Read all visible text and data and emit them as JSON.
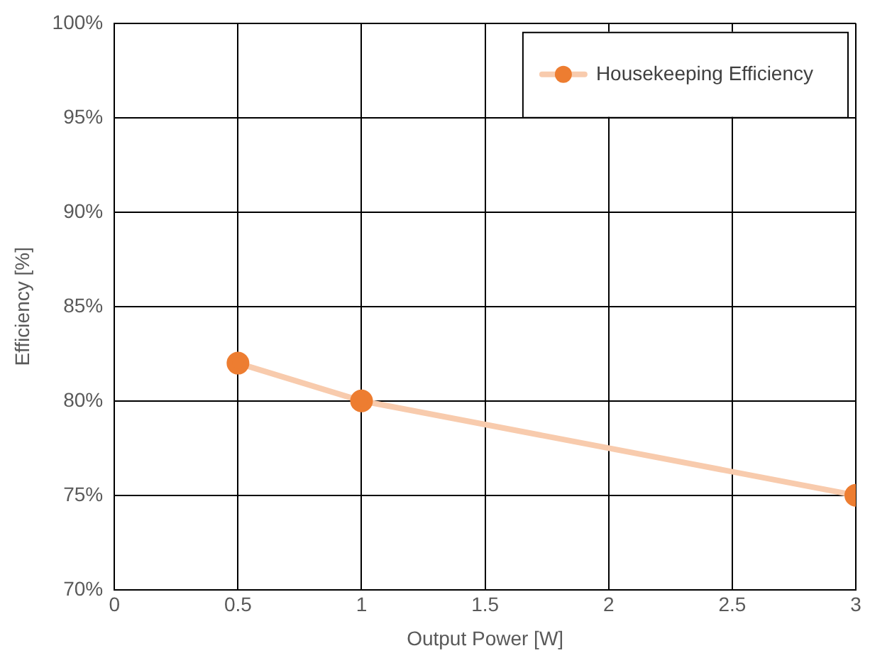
{
  "chart_data": {
    "type": "line",
    "xlabel": "Output Power [W]",
    "ylabel": "Efficiency [%]",
    "series": [
      {
        "name": "Housekeeping Efficiency",
        "color": "#f8cbad",
        "colors": [
          "#ed7d31",
          "#ed7d31",
          "#ed7d31"
        ],
        "x": [
          0.5,
          1,
          3
        ],
        "values": [
          82,
          80,
          75
        ]
      }
    ],
    "xlim": [
      0,
      3
    ],
    "xticks": [
      0,
      0.5,
      1,
      1.5,
      2,
      2.5,
      3
    ],
    "ylim": [
      70,
      100
    ],
    "yticks": [
      {
        "value": 70,
        "label": "70%"
      },
      {
        "value": 75,
        "label": "75%"
      },
      {
        "value": 80,
        "label": "80%"
      },
      {
        "value": 85,
        "label": "85%"
      },
      {
        "value": 90,
        "label": "90%"
      },
      {
        "value": 95,
        "label": "95%"
      },
      {
        "value": 100,
        "label": "100%"
      }
    ],
    "grid": true,
    "legend": "top right",
    "marker": "circle",
    "line_style": "solid"
  }
}
